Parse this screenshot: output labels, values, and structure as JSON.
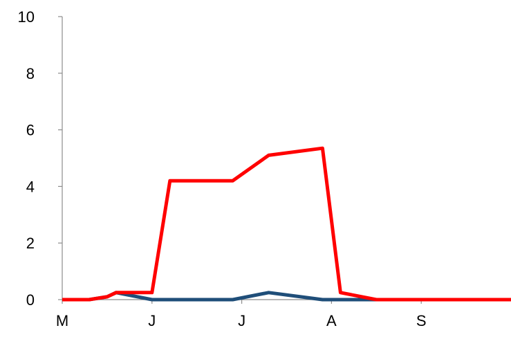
{
  "chart_data": {
    "type": "line",
    "x_ticks": [
      "M",
      "J",
      "J",
      "A",
      "S"
    ],
    "y_ticks": [
      "0",
      "2",
      "4",
      "6",
      "8",
      "10"
    ],
    "ylim": [
      0,
      10
    ],
    "grid": false,
    "legend": "none",
    "title": "",
    "xlabel": "",
    "ylabel": "",
    "x": [
      0,
      0.3,
      0.5,
      0.6,
      1.0,
      1.2,
      1.5,
      1.9,
      2.3,
      2.9,
      3.1,
      3.5,
      4.0,
      5.0
    ],
    "series": [
      {
        "color": "#ff0000",
        "values": [
          0,
          0,
          0.1,
          0.25,
          0.25,
          4.2,
          4.2,
          4.2,
          5.1,
          5.35,
          0.25,
          0,
          0,
          0
        ]
      },
      {
        "color": "#1f4e79",
        "values": [
          0,
          0,
          0.1,
          0.25,
          0,
          0,
          0,
          0,
          0.25,
          0,
          0,
          0,
          0,
          0
        ]
      }
    ]
  }
}
